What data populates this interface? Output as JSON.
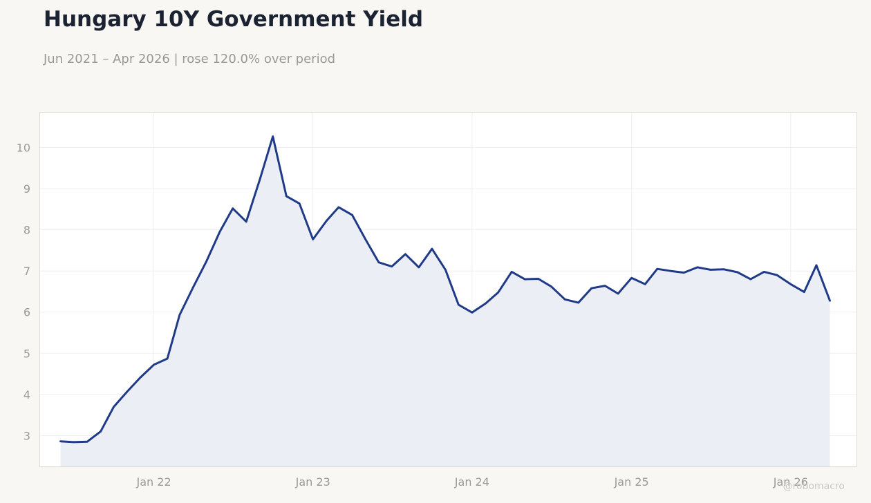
{
  "title": "Hungary 10Y Government Yield",
  "subtitle": "Jun 2021 – Apr 2026 | rose 120.0% over period",
  "watermark": "@robomacro",
  "colors": {
    "line": "#1f3a87",
    "area": "#eceef5",
    "background": "#f8f7f4",
    "plot_background": "#ffffff",
    "grid": "#efefef",
    "title": "#1b2333",
    "muted_text": "#9a9a95"
  },
  "chart_data": {
    "type": "area",
    "x_axis": "date",
    "xlim": [
      "2021-04-15",
      "2026-06-01"
    ],
    "ylim": [
      2.25,
      10.85
    ],
    "grid": true,
    "x_ticks": [
      {
        "date": "2022-01-01",
        "label": "Jan 22"
      },
      {
        "date": "2023-01-01",
        "label": "Jan 23"
      },
      {
        "date": "2024-01-01",
        "label": "Jan 24"
      },
      {
        "date": "2025-01-01",
        "label": "Jan 25"
      },
      {
        "date": "2026-01-01",
        "label": "Jan 26"
      }
    ],
    "y_ticks": [
      3,
      4,
      5,
      6,
      7,
      8,
      9,
      10
    ],
    "series": [
      {
        "x": [
          "2021-06-01",
          "2021-07-01",
          "2021-08-01",
          "2021-09-01",
          "2021-10-01",
          "2021-11-01",
          "2021-12-01",
          "2022-01-01",
          "2022-02-01",
          "2022-03-01",
          "2022-04-01",
          "2022-05-01",
          "2022-06-01",
          "2022-07-01",
          "2022-08-01",
          "2022-09-01",
          "2022-10-01",
          "2022-11-01",
          "2022-12-01",
          "2023-01-01",
          "2023-02-01",
          "2023-03-01",
          "2023-04-01",
          "2023-05-01",
          "2023-06-01",
          "2023-07-01",
          "2023-08-01",
          "2023-09-01",
          "2023-10-01",
          "2023-11-01",
          "2023-12-01",
          "2024-01-01",
          "2024-02-01",
          "2024-03-01",
          "2024-04-01",
          "2024-05-01",
          "2024-06-01",
          "2024-07-01",
          "2024-08-01",
          "2024-09-01",
          "2024-10-01",
          "2024-11-01",
          "2024-12-01",
          "2025-01-01",
          "2025-02-01",
          "2025-03-01",
          "2025-04-01",
          "2025-05-01",
          "2025-06-01",
          "2025-07-01",
          "2025-08-01",
          "2025-09-01",
          "2025-10-01",
          "2025-11-01",
          "2025-12-01",
          "2026-01-01",
          "2026-02-01",
          "2026-03-01",
          "2026-04-01"
        ],
        "values": [
          2.86,
          2.84,
          2.85,
          3.1,
          3.7,
          4.07,
          4.41,
          4.72,
          4.87,
          5.93,
          6.6,
          7.22,
          7.95,
          8.52,
          8.2,
          9.22,
          10.27,
          8.82,
          8.64,
          7.77,
          8.22,
          8.55,
          8.36,
          7.78,
          7.21,
          7.11,
          7.41,
          7.09,
          7.54,
          7.03,
          6.18,
          5.99,
          6.21,
          6.48,
          6.98,
          6.8,
          6.81,
          6.62,
          6.31,
          6.23,
          6.58,
          6.64,
          6.45,
          6.83,
          6.68,
          7.05,
          7.0,
          6.96,
          7.09,
          7.03,
          7.04,
          6.97,
          6.8,
          6.98,
          6.9,
          6.68,
          6.49,
          7.14,
          6.28
        ]
      }
    ]
  }
}
